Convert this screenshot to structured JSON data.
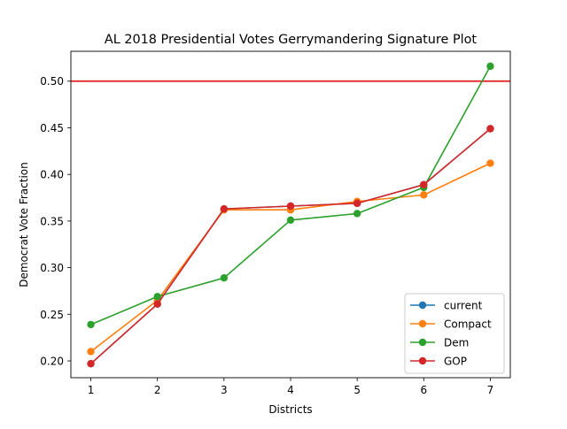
{
  "chart_data": {
    "type": "line",
    "title": "AL 2018 Presidential Votes Gerrymandering Signature Plot",
    "xlabel": "Districts",
    "ylabel": "Democrat Vote Fraction",
    "x": [
      1,
      2,
      3,
      4,
      5,
      6,
      7
    ],
    "xlim": [
      0.7,
      7.3
    ],
    "ylim": [
      0.182,
      0.532
    ],
    "xticks": [
      1,
      2,
      3,
      4,
      5,
      6,
      7
    ],
    "yticks": [
      0.2,
      0.25,
      0.3,
      0.35,
      0.4,
      0.45,
      0.5
    ],
    "ytick_labels": [
      "0.20",
      "0.25",
      "0.30",
      "0.35",
      "0.40",
      "0.45",
      "0.50"
    ],
    "hline": {
      "y": 0.5,
      "color": "#e41a1c"
    },
    "grid": false,
    "legend_position": "lower-right",
    "series": [
      {
        "name": "current",
        "color": "#1f77b4",
        "values": [
          0.197,
          0.261,
          0.363,
          0.366,
          0.369,
          0.389,
          0.449
        ]
      },
      {
        "name": "Compact",
        "color": "#ff7f0e",
        "values": [
          0.21,
          0.265,
          0.362,
          0.362,
          0.371,
          0.378,
          0.412
        ]
      },
      {
        "name": "Dem",
        "color": "#2ca02c",
        "values": [
          0.239,
          0.269,
          0.289,
          0.351,
          0.358,
          0.386,
          0.516
        ]
      },
      {
        "name": "GOP",
        "color": "#d62728",
        "values": [
          0.197,
          0.261,
          0.363,
          0.366,
          0.369,
          0.389,
          0.449
        ]
      }
    ]
  }
}
